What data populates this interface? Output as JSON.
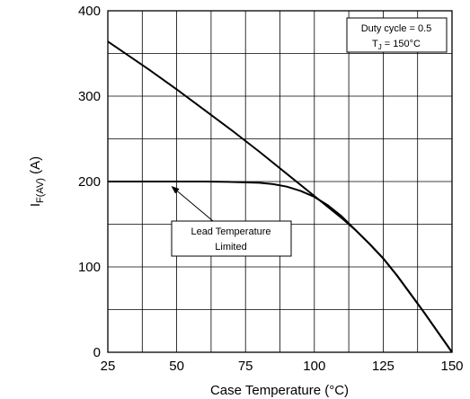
{
  "chart_data": {
    "type": "line",
    "xlabel": "Case Temperature (°C)",
    "ylabel": {
      "main": "I",
      "sub": "F(AV)",
      "unit": " (A)"
    },
    "xlim": [
      25,
      150
    ],
    "ylim": [
      0,
      400
    ],
    "x_ticks": [
      "25",
      "50",
      "75",
      "100",
      "125",
      "150"
    ],
    "y_ticks": [
      "0",
      "100",
      "200",
      "300",
      "400"
    ],
    "x_minor_step": 12.5,
    "y_minor_step": 50,
    "grid": true,
    "series": [
      {
        "x": [
          25,
          40,
          50,
          60,
          70,
          80,
          90,
          100,
          110,
          115,
          120,
          125,
          130,
          135,
          140,
          145,
          150
        ],
        "y": [
          364,
          331,
          308,
          284,
          260,
          235,
          209,
          183,
          157,
          143,
          127,
          110,
          90,
          68,
          46,
          23,
          0
        ]
      },
      {
        "x": [
          25,
          40,
          50,
          60,
          70,
          80,
          85,
          90,
          95,
          100,
          105,
          110,
          115,
          120,
          125,
          130,
          135,
          140,
          145,
          150
        ],
        "y": [
          200,
          200,
          200,
          200,
          199.5,
          198.5,
          197,
          194,
          189,
          182,
          172,
          159,
          143,
          127,
          110,
          90,
          68,
          46,
          23,
          0
        ]
      }
    ],
    "annotations": {
      "conditions": {
        "line1": "Duty  cycle  =  0.5",
        "line2_main": "T",
        "line2_sub": "J",
        "line2_rest": " = 150°C"
      },
      "callout": {
        "line1": "Lead  Temperature",
        "line2": "Limited",
        "points_to": {
          "x": 48,
          "y": 200
        }
      }
    }
  }
}
